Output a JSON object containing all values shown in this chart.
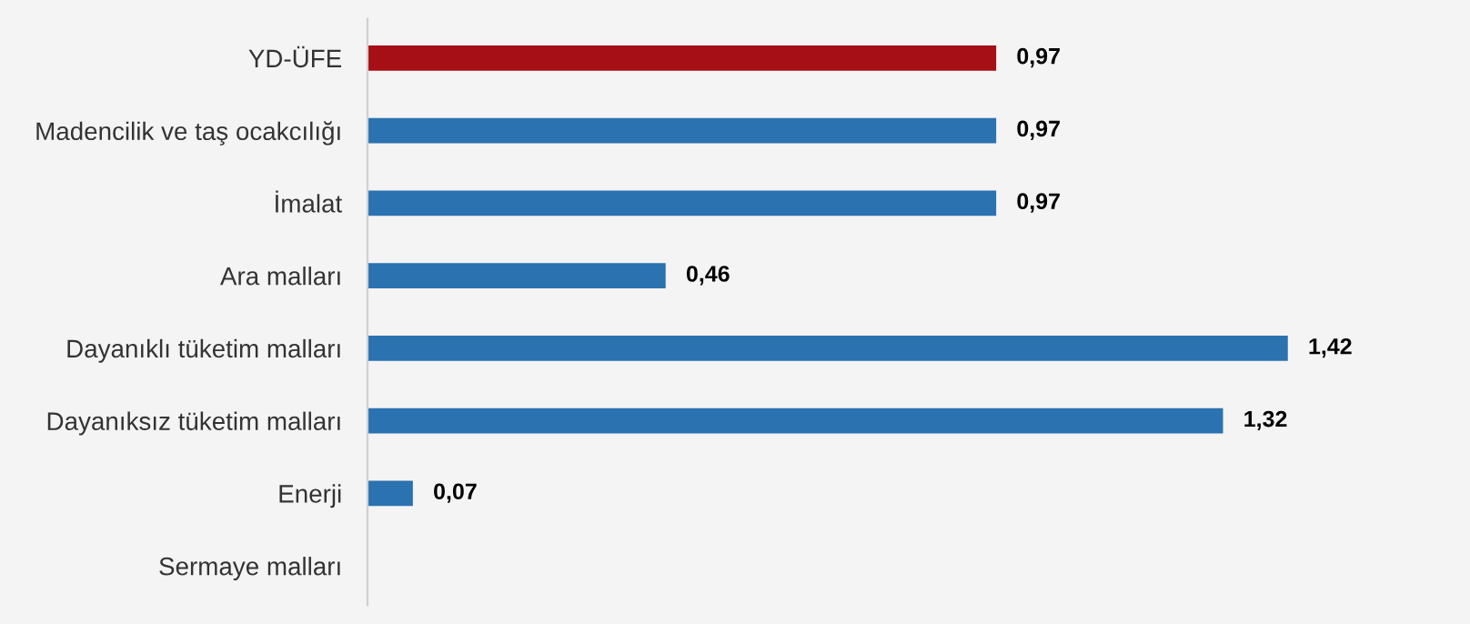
{
  "chart_data": {
    "type": "bar",
    "orientation": "horizontal",
    "categories": [
      "YD-ÜFE",
      "Madencilik ve taş ocakcılığı",
      "İmalat",
      "Ara malları",
      "Dayanıklı tüketim malları",
      "Dayanıksız tüketim malları",
      "Enerji",
      "Sermaye malları"
    ],
    "values": [
      0.97,
      0.97,
      0.97,
      0.46,
      1.42,
      1.32,
      0.07,
      null
    ],
    "value_labels": [
      "0,97",
      "0,97",
      "0,97",
      "0,46",
      "1,42",
      "1,32",
      "0,07",
      null
    ],
    "colors": [
      "#a50f15",
      "#2a72b0",
      "#2a72b0",
      "#2a72b0",
      "#2a72b0",
      "#2a72b0",
      "#2a72b0",
      "#2a72b0"
    ],
    "grid": false,
    "legend": false
  }
}
